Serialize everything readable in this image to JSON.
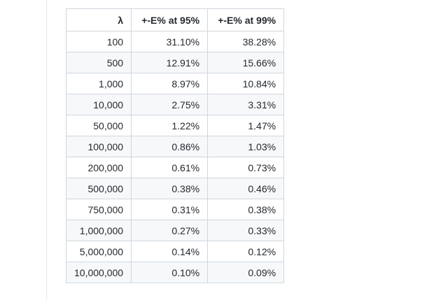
{
  "table": {
    "headers": [
      "λ",
      "+-E% at 95%",
      "+-E% at 99%"
    ],
    "rows": [
      [
        "100",
        "31.10%",
        "38.28%"
      ],
      [
        "500",
        "12.91%",
        "15.66%"
      ],
      [
        "1,000",
        "8.97%",
        "10.84%"
      ],
      [
        "10,000",
        "2.75%",
        "3.31%"
      ],
      [
        "50,000",
        "1.22%",
        "1.47%"
      ],
      [
        "100,000",
        "0.86%",
        "1.03%"
      ],
      [
        "200,000",
        "0.61%",
        "0.73%"
      ],
      [
        "500,000",
        "0.38%",
        "0.46%"
      ],
      [
        "750,000",
        "0.31%",
        "0.38%"
      ],
      [
        "1,000,000",
        "0.27%",
        "0.33%"
      ],
      [
        "5,000,000",
        "0.14%",
        "0.12%"
      ],
      [
        "10,000,000",
        "0.10%",
        "0.09%"
      ]
    ]
  }
}
